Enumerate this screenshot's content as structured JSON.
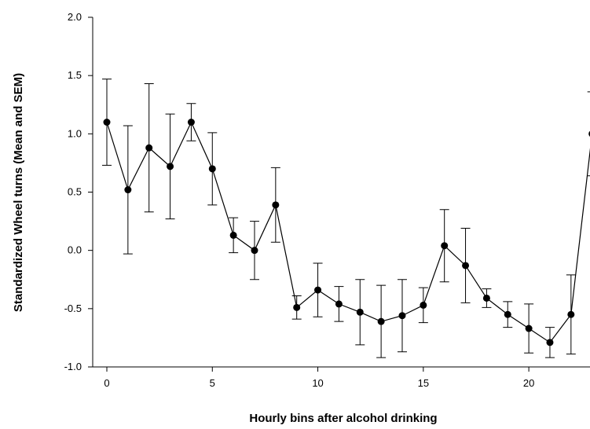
{
  "chart_data": {
    "type": "line",
    "xlabel": "Hourly bins after alcohol drinking",
    "ylabel": "Standardized Wheel turns (Mean and SEM)",
    "x": [
      0,
      1,
      2,
      3,
      4,
      5,
      6,
      7,
      8,
      9,
      10,
      11,
      12,
      13,
      14,
      15,
      16,
      17,
      18,
      19,
      20,
      21,
      22,
      23
    ],
    "series": [
      {
        "color": "#000000",
        "values": [
          1.1,
          0.52,
          0.88,
          0.72,
          1.1,
          0.7,
          0.13,
          0.0,
          0.39,
          -0.49,
          -0.34,
          -0.46,
          -0.53,
          -0.61,
          -0.56,
          -0.47,
          0.04,
          -0.13,
          -0.41,
          -0.55,
          -0.67,
          -0.79,
          -0.55,
          1.0
        ],
        "errors": [
          0.37,
          0.55,
          0.55,
          0.45,
          0.16,
          0.31,
          0.15,
          0.25,
          0.32,
          0.1,
          0.23,
          0.15,
          0.28,
          0.31,
          0.31,
          0.15,
          0.31,
          0.32,
          0.08,
          0.11,
          0.21,
          0.13,
          0.34,
          0.36
        ]
      }
    ],
    "xlim": [
      -0.67,
      22.9
    ],
    "ylim": [
      -1.0,
      2.0
    ],
    "xticks": [
      0,
      5,
      10,
      15,
      20
    ],
    "yticks": [
      {
        "value": -1.0,
        "label": "-1.0"
      },
      -0.5,
      {
        "value": 0.0,
        "label": "0.0"
      },
      0.5,
      {
        "value": 1.0,
        "label": "1.0"
      },
      1.5,
      {
        "value": 2.0,
        "label": "2.0"
      }
    ]
  }
}
